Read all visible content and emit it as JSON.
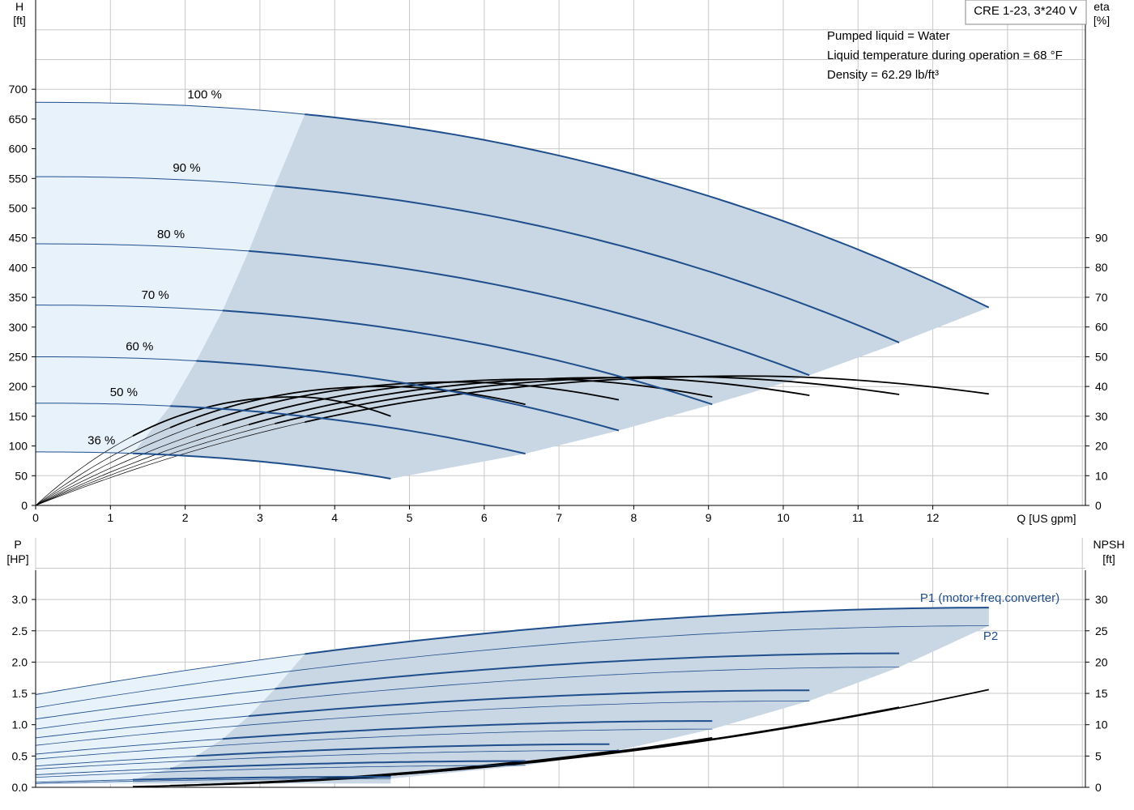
{
  "header": {
    "product": "CRE 1-23, 3*240 V",
    "info_lines": [
      "Pumped liquid = Water",
      "Liquid temperature during operation = 68 °F",
      "Density = 62.29 lb/ft³"
    ]
  },
  "colors": {
    "curve_blue": "#1f4e8c",
    "efficiency_black": "#000000",
    "region_fill": "#c9d6e4",
    "region_light_fill": "#e8f2fb",
    "grid": "#c8c8c8"
  },
  "chart_data": [
    {
      "type": "line",
      "name": "Q-H curves",
      "x_axis": {
        "label": "Q [US gpm]",
        "ticks": [
          "0",
          "1",
          "2",
          "3",
          "4",
          "5",
          "6",
          "7",
          "8",
          "9",
          "10",
          "11",
          "12"
        ],
        "range": [
          0,
          14
        ]
      },
      "y_axis_left": {
        "label_line1": "H",
        "label_line2": "[ft]",
        "ticks": [
          "0",
          "50",
          "100",
          "150",
          "200",
          "250",
          "300",
          "350",
          "400",
          "450",
          "500",
          "550",
          "600",
          "650",
          "700"
        ],
        "range": [
          0,
          850
        ]
      },
      "y_axis_right": {
        "label_line1": "eta",
        "label_line2": "[%]",
        "ticks": [
          "0",
          "10",
          "20",
          "30",
          "40",
          "50",
          "60",
          "70",
          "80",
          "90"
        ],
        "range": [
          0,
          170
        ]
      },
      "grid": true,
      "speed_curves": [
        {
          "label": "100 %",
          "h0": 678,
          "qmax": 12.75,
          "hend": 333,
          "qdash": 3.6
        },
        {
          "label": "90 %",
          "h0": 553,
          "qmax": 11.55,
          "hend": 274,
          "qdash": 3.2
        },
        {
          "label": "80 %",
          "h0": 440,
          "qmax": 10.35,
          "hend": 219,
          "qdash": 2.85
        },
        {
          "label": "70 %",
          "h0": 337,
          "qmax": 9.05,
          "hend": 170,
          "qdash": 2.5
        },
        {
          "label": "60 %",
          "h0": 250,
          "qmax": 7.8,
          "hend": 126,
          "qdash": 2.15
        },
        {
          "label": "50 %",
          "h0": 172,
          "qmax": 6.55,
          "hend": 87,
          "qdash": 1.8
        },
        {
          "label": "36 %",
          "h0": 90,
          "qmax": 4.75,
          "hend": 45,
          "qdash": 1.3
        }
      ],
      "efficiency_curves": [
        {
          "q_start": 1.3,
          "q_peak": 3.5,
          "q_end": 4.75,
          "eta_peak": 36.5,
          "eta_end": 30
        },
        {
          "q_start": 1.8,
          "q_peak": 4.7,
          "q_end": 6.55,
          "eta_peak": 40.0,
          "eta_end": 34
        },
        {
          "q_start": 2.15,
          "q_peak": 5.7,
          "q_end": 7.8,
          "eta_peak": 41.5,
          "eta_end": 35.5
        },
        {
          "q_start": 2.5,
          "q_peak": 6.8,
          "q_end": 9.05,
          "eta_peak": 42.5,
          "eta_end": 36.5
        },
        {
          "q_start": 2.85,
          "q_peak": 7.8,
          "q_end": 10.35,
          "eta_peak": 43.0,
          "eta_end": 37
        },
        {
          "q_start": 3.2,
          "q_peak": 8.7,
          "q_end": 11.55,
          "eta_peak": 43.3,
          "eta_end": 37.3
        },
        {
          "q_start": 3.6,
          "q_peak": 9.6,
          "q_end": 12.75,
          "eta_peak": 43.5,
          "eta_end": 37.5
        }
      ]
    },
    {
      "type": "line",
      "name": "Power and NPSH curves",
      "x_axis": {
        "range": [
          0,
          14
        ]
      },
      "y_axis_left": {
        "label_line1": "P",
        "label_line2": "[HP]",
        "ticks": [
          "0.0",
          "0.5",
          "1.0",
          "1.5",
          "2.0",
          "2.5",
          "3.0"
        ],
        "range": [
          0,
          3.5
        ]
      },
      "y_axis_right": {
        "label_line1": "NPSH",
        "label_line2": "[ft]",
        "ticks": [
          "0",
          "5",
          "10",
          "15",
          "20",
          "25",
          "30"
        ],
        "range": [
          0,
          35
        ]
      },
      "grid": true,
      "series_labels": {
        "p1": "P1 (motor+freq.converter)",
        "p2": "P2"
      },
      "power_curves": [
        {
          "p1_start": 1.48,
          "p1_end": 2.87,
          "p2_start": 1.27,
          "p2_end": 2.58,
          "qmax": 12.75,
          "qdash": 3.6
        },
        {
          "p1_start": 1.09,
          "p1_end": 2.14,
          "p2_start": 0.93,
          "p2_end": 1.92,
          "qmax": 11.55,
          "qdash": 3.2
        },
        {
          "p1_start": 0.79,
          "p1_end": 1.55,
          "p2_start": 0.67,
          "p2_end": 1.38,
          "qmax": 10.35,
          "qdash": 2.85
        },
        {
          "p1_start": 0.53,
          "p1_end": 1.06,
          "p2_start": 0.45,
          "p2_end": 0.93,
          "qmax": 9.05,
          "qdash": 2.5
        },
        {
          "p1_start": 0.34,
          "p1_end": 0.69,
          "p2_start": 0.29,
          "p2_end": 0.59,
          "qmax": 7.8,
          "qdash": 2.15
        },
        {
          "p1_start": 0.2,
          "p1_end": 0.42,
          "p2_start": 0.16,
          "p2_end": 0.35,
          "qmax": 6.55,
          "qdash": 1.8
        },
        {
          "p1_start": 0.08,
          "p1_end": 0.17,
          "p2_start": 0.06,
          "p2_end": 0.14,
          "qmax": 4.75,
          "qdash": 1.3
        }
      ],
      "npsh_curves": [
        {
          "q_start": 1.3,
          "q_end": 4.75,
          "npsh_end": 1.8
        },
        {
          "q_start": 1.8,
          "q_end": 6.55,
          "npsh_end": 4.2
        },
        {
          "q_start": 2.15,
          "q_end": 7.8,
          "npsh_end": 5.9
        },
        {
          "q_start": 2.5,
          "q_end": 9.05,
          "npsh_end": 7.9
        },
        {
          "q_start": 2.85,
          "q_end": 10.35,
          "npsh_end": 10.2
        },
        {
          "q_start": 3.2,
          "q_end": 11.55,
          "npsh_end": 12.8
        },
        {
          "q_start": 3.6,
          "q_end": 12.75,
          "npsh_end": 15.6
        }
      ]
    }
  ]
}
